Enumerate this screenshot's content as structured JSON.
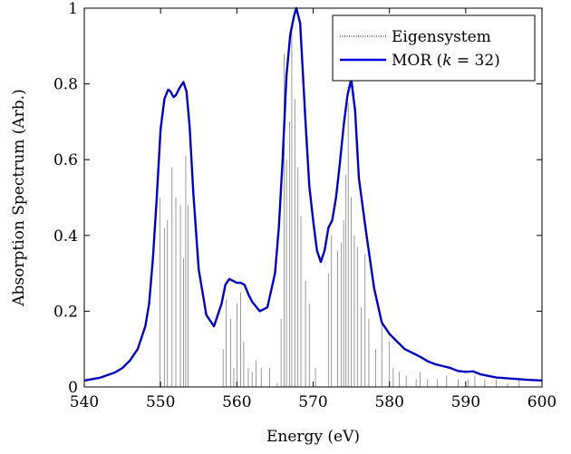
{
  "chart_data": {
    "type": "line",
    "title": "",
    "xlabel": "Energy (eV)",
    "ylabel": "Absorption Spectrum (Arb.)",
    "xlim": [
      540,
      600
    ],
    "ylim": [
      0,
      1
    ],
    "x_ticks": [
      "540",
      "550",
      "560",
      "570",
      "580",
      "590",
      "600"
    ],
    "y_ticks": [
      "0",
      "0.2",
      "0.4",
      "0.6",
      "0.8",
      "1"
    ],
    "grid": false,
    "legend_position": "top-right",
    "legend": {
      "eigen_label": "Eigensystem",
      "mor_label_prefix": "MOR (",
      "mor_label_var": "k",
      "mor_label_suffix": " = 32)"
    },
    "colors": {
      "mor": "#0000e6",
      "eigen": "#000000",
      "sticks": "#808080"
    },
    "series": [
      {
        "name": "MOR (k = 32)",
        "x": [
          540,
          542,
          544,
          545,
          546,
          547,
          548,
          548.5,
          549,
          549.5,
          550,
          550.5,
          551,
          551.3,
          551.7,
          552,
          552.5,
          553,
          553.4,
          553.8,
          554.3,
          555,
          556,
          557,
          558,
          558.5,
          559,
          559.5,
          560,
          560.5,
          561,
          561.5,
          562,
          563,
          564,
          565,
          565.5,
          566,
          566.5,
          567,
          567.5,
          567.8,
          568.3,
          569,
          569.5,
          570,
          570.5,
          571,
          571.5,
          572,
          572.5,
          573,
          573.5,
          574,
          574.5,
          575,
          575.5,
          576,
          577,
          578,
          579,
          580,
          581,
          582,
          583,
          584,
          585,
          586,
          587,
          588,
          589,
          590,
          591,
          592,
          594,
          596,
          598,
          600
        ],
        "y": [
          0.017,
          0.024,
          0.038,
          0.05,
          0.07,
          0.1,
          0.16,
          0.22,
          0.34,
          0.5,
          0.68,
          0.76,
          0.785,
          0.78,
          0.765,
          0.77,
          0.79,
          0.805,
          0.78,
          0.69,
          0.51,
          0.31,
          0.19,
          0.16,
          0.22,
          0.27,
          0.285,
          0.28,
          0.275,
          0.275,
          0.27,
          0.245,
          0.225,
          0.2,
          0.21,
          0.3,
          0.42,
          0.6,
          0.82,
          0.93,
          0.98,
          1.0,
          0.96,
          0.7,
          0.53,
          0.44,
          0.36,
          0.33,
          0.36,
          0.42,
          0.44,
          0.5,
          0.59,
          0.69,
          0.77,
          0.81,
          0.73,
          0.55,
          0.4,
          0.26,
          0.17,
          0.14,
          0.12,
          0.1,
          0.09,
          0.08,
          0.068,
          0.06,
          0.055,
          0.05,
          0.042,
          0.04,
          0.041,
          0.033,
          0.025,
          0.022,
          0.019,
          0.017
        ]
      },
      {
        "name": "Eigensystem",
        "x": [
          540,
          542,
          544,
          545,
          546,
          547,
          548,
          548.5,
          549,
          549.5,
          550,
          550.5,
          551,
          551.3,
          551.7,
          552,
          552.5,
          553,
          553.4,
          553.8,
          554.3,
          555,
          556,
          557,
          558,
          558.5,
          559,
          559.5,
          560,
          560.5,
          561,
          561.5,
          562,
          563,
          564,
          565,
          565.5,
          566,
          566.5,
          567,
          567.5,
          567.8,
          568.3,
          569,
          569.5,
          570,
          570.5,
          571,
          571.5,
          572,
          572.5,
          573,
          573.5,
          574,
          574.5,
          575,
          575.5,
          576,
          577,
          578,
          579,
          580,
          581,
          582,
          583,
          584,
          585,
          586,
          587,
          588,
          589,
          590,
          591,
          592,
          594,
          596,
          598,
          600
        ],
        "y": [
          0.017,
          0.024,
          0.038,
          0.05,
          0.07,
          0.1,
          0.16,
          0.22,
          0.34,
          0.5,
          0.68,
          0.76,
          0.785,
          0.78,
          0.765,
          0.77,
          0.79,
          0.805,
          0.78,
          0.69,
          0.51,
          0.31,
          0.19,
          0.16,
          0.22,
          0.27,
          0.285,
          0.28,
          0.275,
          0.275,
          0.27,
          0.245,
          0.225,
          0.2,
          0.21,
          0.3,
          0.42,
          0.6,
          0.82,
          0.93,
          0.98,
          1.0,
          0.96,
          0.7,
          0.53,
          0.44,
          0.36,
          0.33,
          0.36,
          0.42,
          0.44,
          0.5,
          0.59,
          0.69,
          0.78,
          0.83,
          0.74,
          0.56,
          0.41,
          0.26,
          0.17,
          0.14,
          0.12,
          0.1,
          0.09,
          0.08,
          0.068,
          0.06,
          0.055,
          0.05,
          0.042,
          0.04,
          0.041,
          0.033,
          0.025,
          0.022,
          0.019,
          0.017
        ]
      }
    ],
    "sticks": {
      "x": [
        549.9,
        550.5,
        550.9,
        551.5,
        552.0,
        552.6,
        553.0,
        553.3,
        553.6,
        558.2,
        558.6,
        559.2,
        559.6,
        560.0,
        560.5,
        560.9,
        561.5,
        562.0,
        562.5,
        563.2,
        564.3,
        565.3,
        565.8,
        566.2,
        566.5,
        566.9,
        567.2,
        567.6,
        568.0,
        568.4,
        569.0,
        569.5,
        570.3,
        572.0,
        572.4,
        573.2,
        573.7,
        574.0,
        574.3,
        574.6,
        575.0,
        575.4,
        575.8,
        576.3,
        576.8,
        577.3,
        578.2,
        579.0,
        580.0,
        580.5,
        581.3,
        582.2,
        583.5,
        584.0,
        585.0,
        586.3,
        587.5,
        589.0,
        590.3,
        591.2,
        592.5,
        594.0,
        595.5,
        597.0
      ],
      "y": [
        0.5,
        0.42,
        0.44,
        0.58,
        0.5,
        0.48,
        0.34,
        0.61,
        0.48,
        0.1,
        0.23,
        0.18,
        0.05,
        0.22,
        0.25,
        0.12,
        0.05,
        0.04,
        0.07,
        0.05,
        0.05,
        0.01,
        0.18,
        0.88,
        0.6,
        0.7,
        0.95,
        0.76,
        0.58,
        0.45,
        0.28,
        0.22,
        0.05,
        0.3,
        0.4,
        0.36,
        0.38,
        0.44,
        0.56,
        0.75,
        0.5,
        0.4,
        0.37,
        0.21,
        0.35,
        0.18,
        0.1,
        0.18,
        0.12,
        0.05,
        0.04,
        0.03,
        0.02,
        0.04,
        0.02,
        0.02,
        0.03,
        0.02,
        0.02,
        0.03,
        0.02,
        0.02,
        0.01,
        0.02
      ]
    }
  }
}
